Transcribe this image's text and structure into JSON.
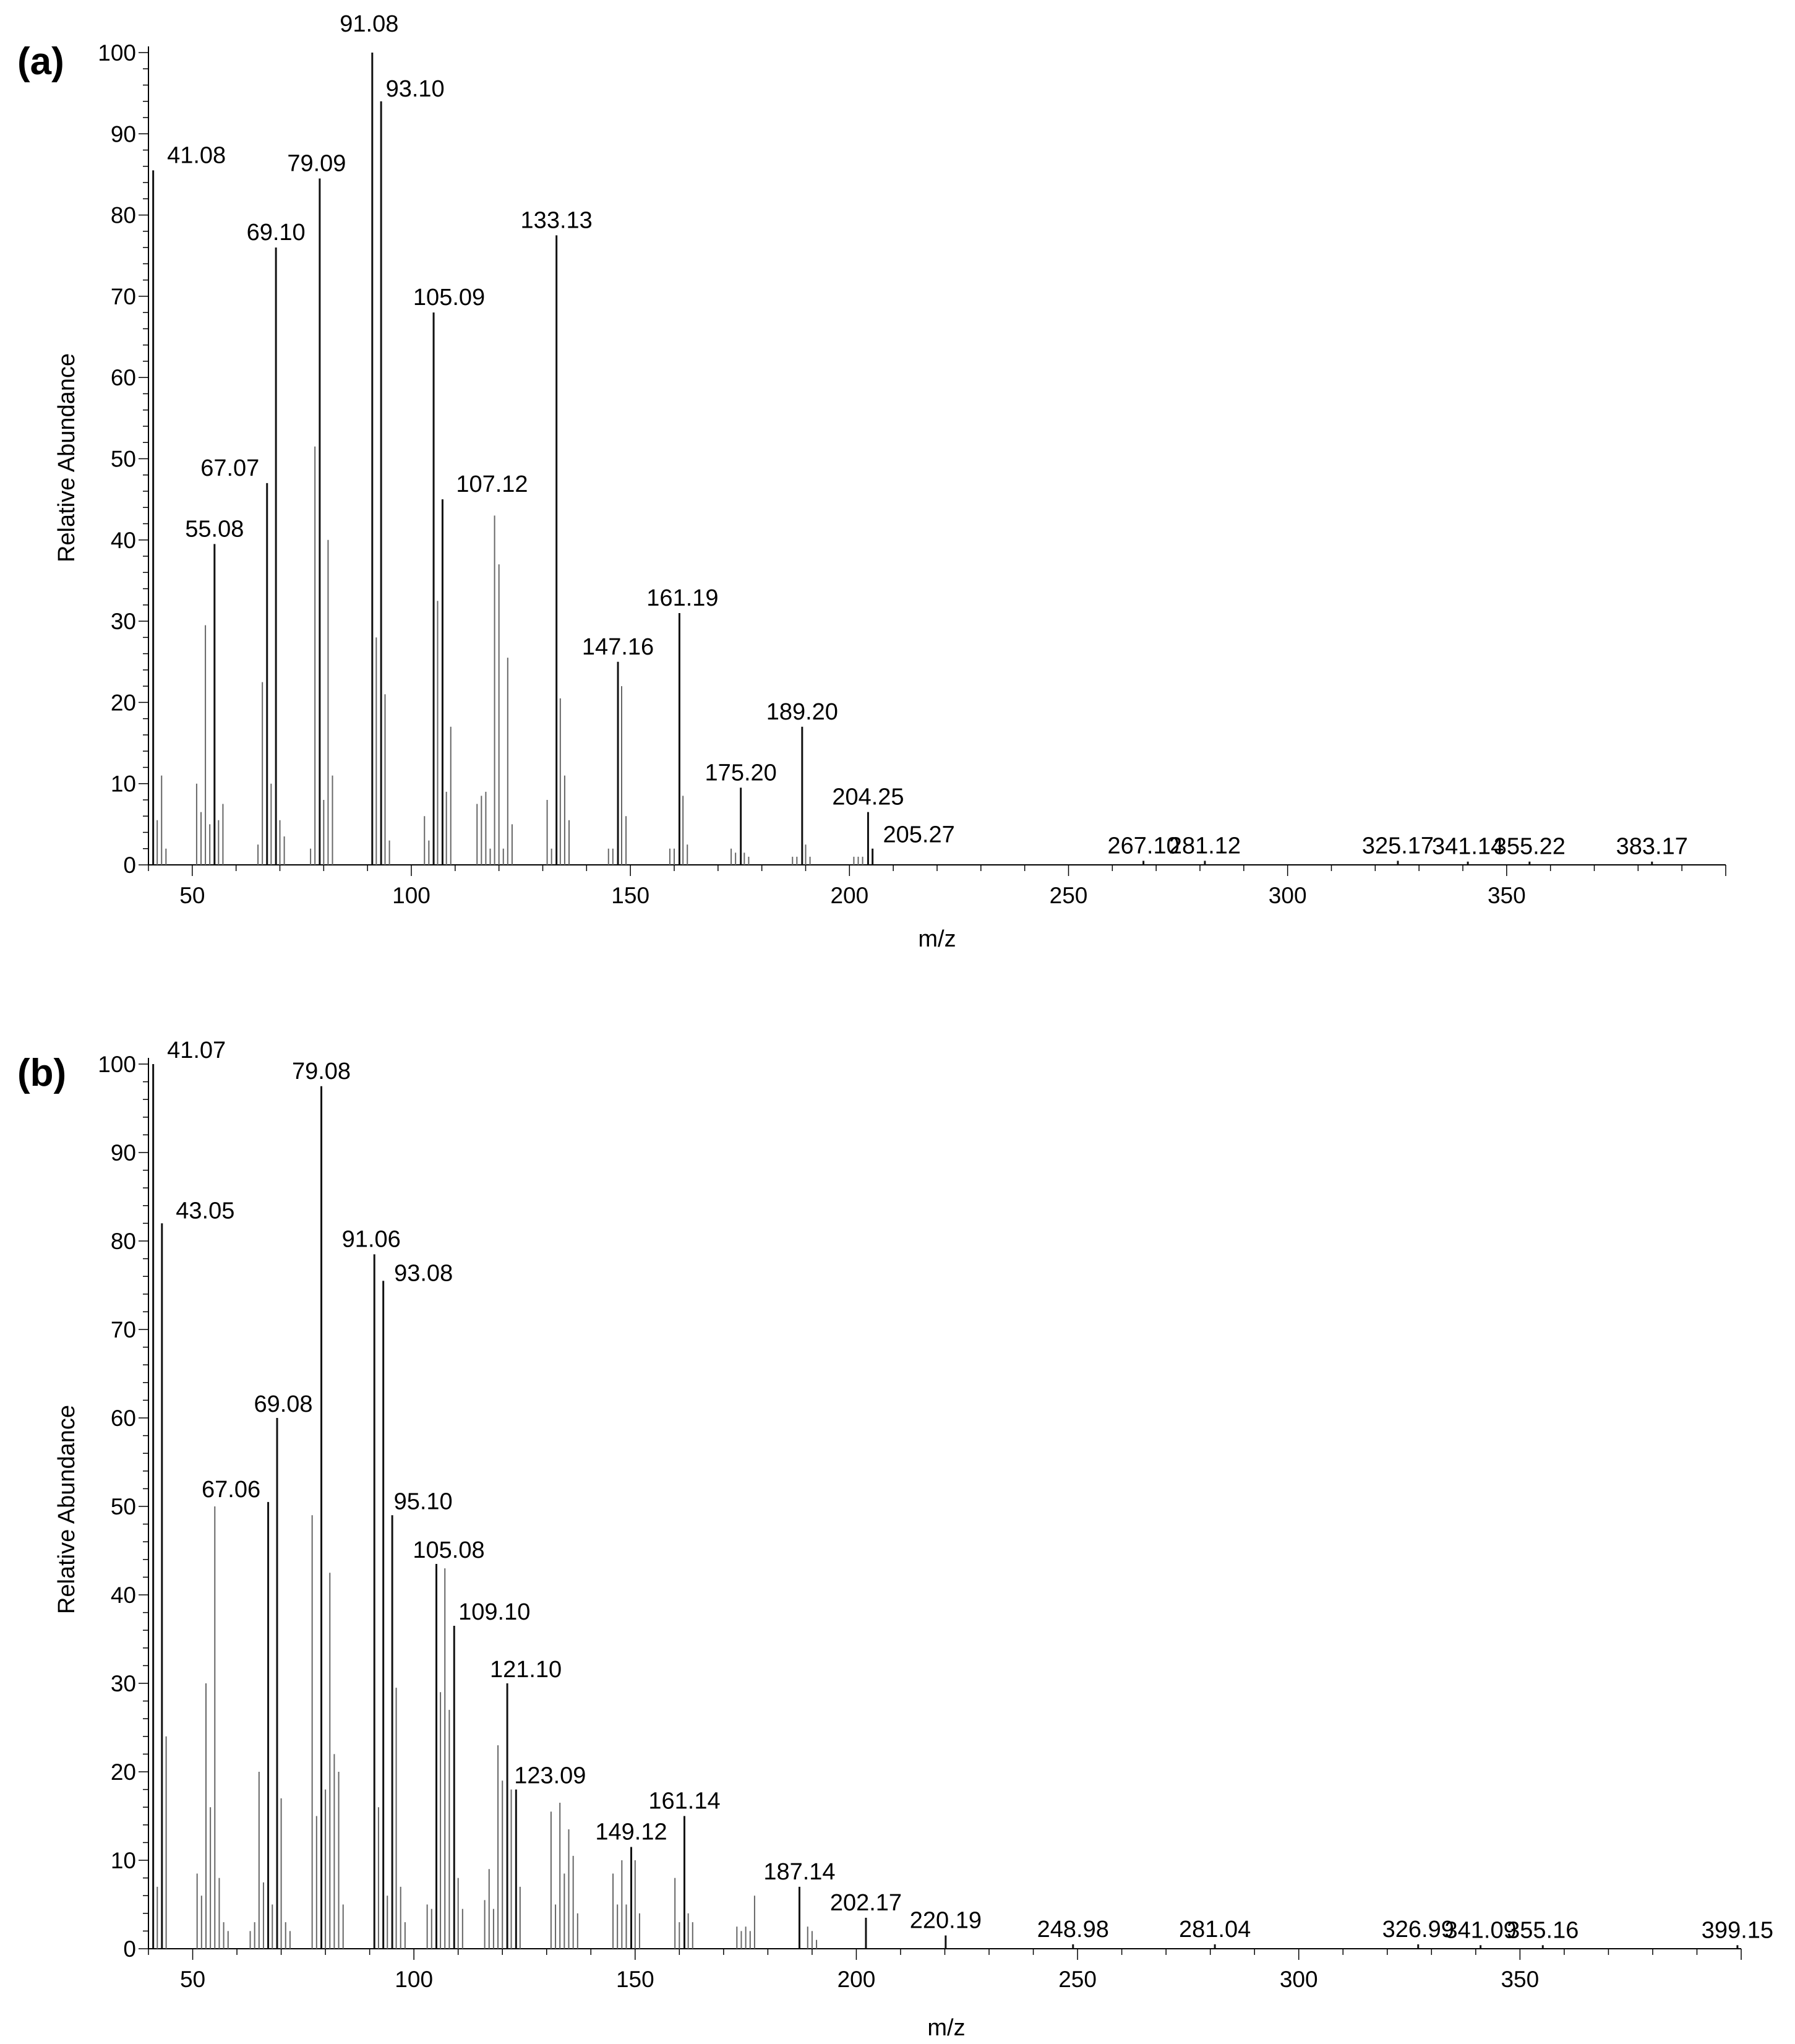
{
  "chart_data": [
    {
      "panel": "(a)",
      "type": "bar",
      "xlabel": "m/z",
      "ylabel": "Relative Abundance",
      "xlim": [
        40,
        400
      ],
      "ylim": [
        0,
        100
      ],
      "xticks": [
        "50",
        "100",
        "150",
        "200",
        "250",
        "300",
        "350"
      ],
      "yticks": [
        "0",
        "10",
        "20",
        "30",
        "40",
        "50",
        "60",
        "70",
        "80",
        "90",
        "100"
      ],
      "series": [
        {
          "name": "labeled peaks",
          "x": [
            41.08,
            55.08,
            67.07,
            69.1,
            79.09,
            91.08,
            93.1,
            105.09,
            107.12,
            133.13,
            147.16,
            161.19,
            175.2,
            189.2,
            204.25,
            205.27,
            267.1,
            281.12,
            325.17,
            341.14,
            355.22,
            383.17
          ],
          "values": [
            85.5,
            39.5,
            47,
            76,
            84.5,
            100,
            94,
            68,
            45,
            77.5,
            25,
            31,
            9.5,
            17,
            6.5,
            2,
            0.5,
            0.5,
            0.5,
            0.4,
            0.4,
            0.4
          ],
          "labels": [
            "41.08",
            "55.08",
            "67.07",
            "69.10",
            "79.09",
            "91.08",
            "93.10",
            "105.09",
            "107.12",
            "133.13",
            "147.16",
            "161.19",
            "175.20",
            "189.20",
            "204.25",
            "205.27",
            "267.10",
            "281.12",
            "325.17",
            "341.14",
            "355.22",
            "383.17"
          ]
        },
        {
          "name": "other peaks",
          "x": [
            42,
            43,
            44,
            51,
            52,
            53,
            54,
            56,
            57,
            65,
            66,
            68,
            70,
            71,
            77,
            78,
            80,
            81,
            82,
            92,
            94,
            95,
            103,
            104,
            106,
            108,
            109,
            115,
            116,
            117,
            118,
            119,
            120,
            121,
            122,
            123,
            131,
            132,
            134,
            135,
            136,
            145,
            146,
            148,
            149,
            159,
            160,
            162,
            163,
            173,
            174,
            176,
            177,
            187,
            188,
            190,
            191,
            201,
            202,
            203
          ],
          "values": [
            5.5,
            11,
            2,
            10,
            6.5,
            29.5,
            5,
            5.5,
            7.5,
            2.5,
            22.5,
            10,
            5.5,
            3.5,
            2,
            51.5,
            8,
            40,
            11,
            28,
            21,
            3,
            6,
            3,
            32.5,
            9,
            17,
            7.5,
            8.5,
            9,
            2,
            43,
            37,
            2,
            25.5,
            5,
            8,
            2,
            20.5,
            11,
            5.5,
            2,
            2,
            22,
            6,
            2,
            2,
            8.5,
            2.5,
            2,
            1.5,
            1.5,
            1,
            1,
            1,
            2.5,
            1,
            1,
            1,
            1
          ]
        }
      ]
    },
    {
      "panel": "(b)",
      "type": "bar",
      "xlabel": "m/z",
      "ylabel": "Relative Abundance",
      "xlim": [
        40,
        400
      ],
      "ylim": [
        0,
        100
      ],
      "xticks": [
        "50",
        "100",
        "150",
        "200",
        "250",
        "300",
        "350"
      ],
      "yticks": [
        "0",
        "10",
        "20",
        "30",
        "40",
        "50",
        "60",
        "70",
        "80",
        "90",
        "100"
      ],
      "series": [
        {
          "name": "labeled peaks",
          "x": [
            41.07,
            43.05,
            67.06,
            69.08,
            79.08,
            91.06,
            93.08,
            95.1,
            105.08,
            109.1,
            121.1,
            123.09,
            149.12,
            161.14,
            187.14,
            202.17,
            220.19,
            248.98,
            281.04,
            326.99,
            341.09,
            355.16,
            399.15
          ],
          "values": [
            100,
            82,
            50.5,
            60,
            97.5,
            78.5,
            75.5,
            49,
            43.5,
            36.5,
            30,
            18,
            11.5,
            15,
            7,
            3.5,
            1.5,
            0.5,
            0.5,
            0.5,
            0.4,
            0.4,
            0.4
          ],
          "labels": [
            "41.07",
            "43.05",
            "67.06",
            "69.08",
            "79.08",
            "91.06",
            "93.08",
            "95.10",
            "105.08",
            "109.10",
            "121.10",
            "123.09",
            "149.12",
            "161.14",
            "187.14",
            "202.17",
            "220.19",
            "248.98",
            "281.04",
            "326.99",
            "341.09",
            "355.16",
            "399.15"
          ]
        },
        {
          "name": "other peaks",
          "x": [
            42,
            44,
            51,
            52,
            53,
            54,
            55,
            56,
            57,
            58,
            63,
            64,
            65,
            66,
            68,
            70,
            71,
            72,
            77,
            78,
            80,
            81,
            82,
            83,
            84,
            92,
            94,
            96,
            97,
            98,
            103,
            104,
            106,
            107,
            108,
            110,
            111,
            116,
            117,
            118,
            119,
            120,
            122,
            124,
            131,
            132,
            133,
            134,
            135,
            136,
            137,
            145,
            146,
            147,
            148,
            150,
            151,
            159,
            160,
            162,
            163,
            173,
            174,
            175,
            176,
            177,
            189,
            190,
            191
          ],
          "values": [
            7,
            24,
            8.5,
            6,
            30,
            16,
            50,
            8,
            3,
            2,
            2,
            3,
            20,
            7.5,
            5,
            17,
            3,
            2,
            49,
            15,
            18,
            42.5,
            22,
            20,
            5,
            16,
            6,
            29.5,
            7,
            3,
            5,
            4.5,
            29,
            43,
            27,
            8,
            4.5,
            5.5,
            9,
            4.5,
            23,
            19,
            18,
            7,
            15.5,
            5,
            16.5,
            8.5,
            13.5,
            10.5,
            4,
            8.5,
            5,
            10,
            5,
            10,
            4,
            8,
            3,
            4,
            3,
            2.5,
            2,
            2.5,
            2,
            6,
            2.5,
            2,
            1
          ]
        }
      ]
    }
  ]
}
